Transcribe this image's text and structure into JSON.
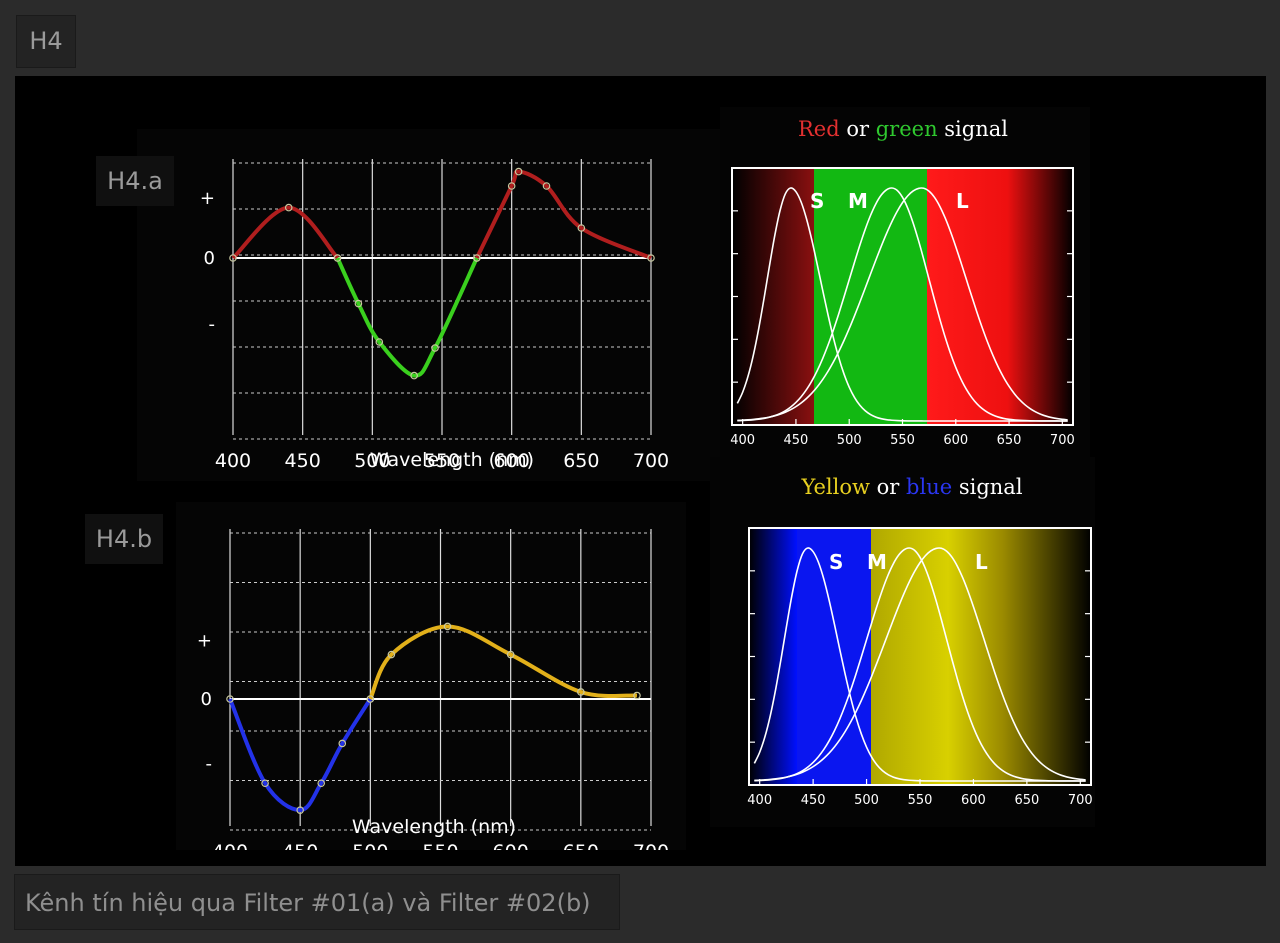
{
  "header": {
    "label": "H4"
  },
  "caption": "Kênh tín hiệu qua Filter #01(a) và Filter #02(b)",
  "chart_data": [
    {
      "type": "line",
      "label": "H4.a",
      "xlabel": "Wavelength (nm)",
      "xticks": [
        "400",
        "450",
        "500",
        "550",
        "600",
        "650",
        "700"
      ],
      "yticks": [
        "+",
        "0",
        "-"
      ],
      "xlim": [
        400,
        700
      ],
      "ylim": [
        -1,
        1
      ],
      "series": [
        {
          "color": "#b01e1e",
          "x": [
            400,
            440,
            475
          ],
          "y": [
            0,
            0.42,
            0
          ]
        },
        {
          "color": "#3ad01e",
          "x": [
            475,
            490,
            505,
            530,
            545,
            575
          ],
          "y": [
            0,
            -0.38,
            -0.7,
            -0.98,
            -0.75,
            0
          ]
        },
        {
          "color": "#b01e1e",
          "x": [
            575,
            600,
            605,
            625,
            650,
            700
          ],
          "y": [
            0,
            0.6,
            0.72,
            0.6,
            0.25,
            0
          ]
        }
      ]
    },
    {
      "type": "line",
      "label": "H4.b",
      "xlabel": "Wavelength (nm)",
      "xticks": [
        "400",
        "450",
        "500",
        "550",
        "600",
        "650",
        "700"
      ],
      "yticks": [
        "+",
        "0",
        "-"
      ],
      "xlim": [
        400,
        700
      ],
      "ylim": [
        -1,
        1
      ],
      "series": [
        {
          "color": "#2332e8",
          "x": [
            400,
            425,
            450,
            465,
            480,
            500
          ],
          "y": [
            0,
            -0.72,
            -0.95,
            -0.72,
            -0.38,
            0
          ]
        },
        {
          "color": "#e2b01a",
          "x": [
            500,
            515,
            555,
            600,
            650,
            690
          ],
          "y": [
            0,
            0.38,
            0.62,
            0.38,
            0.06,
            0.03
          ]
        }
      ]
    },
    {
      "type": "line",
      "title_parts": [
        {
          "text": "Red",
          "color": "#e23030"
        },
        {
          "text": " or ",
          "color": "#ffffff"
        },
        {
          "text": "green",
          "color": "#2fc82f"
        },
        {
          "text": " signal",
          "color": "#ffffff"
        }
      ],
      "xticks": [
        "400",
        "450",
        "500",
        "550",
        "600",
        "650",
        "700"
      ],
      "xlim": [
        390,
        710
      ],
      "series_labels": [
        "S",
        "M",
        "L"
      ],
      "bands": [
        "red-dark",
        "green",
        "red"
      ]
    },
    {
      "type": "line",
      "title_parts": [
        {
          "text": "Yellow",
          "color": "#e8d020"
        },
        {
          "text": " or ",
          "color": "#ffffff"
        },
        {
          "text": "blue",
          "color": "#2a36f0"
        },
        {
          "text": " signal",
          "color": "#ffffff"
        }
      ],
      "xticks": [
        "400",
        "450",
        "500",
        "550",
        "600",
        "650",
        "700"
      ],
      "xlim": [
        390,
        710
      ],
      "series_labels": [
        "S",
        "M",
        "L"
      ],
      "bands": [
        "blue",
        "yellow"
      ]
    }
  ]
}
